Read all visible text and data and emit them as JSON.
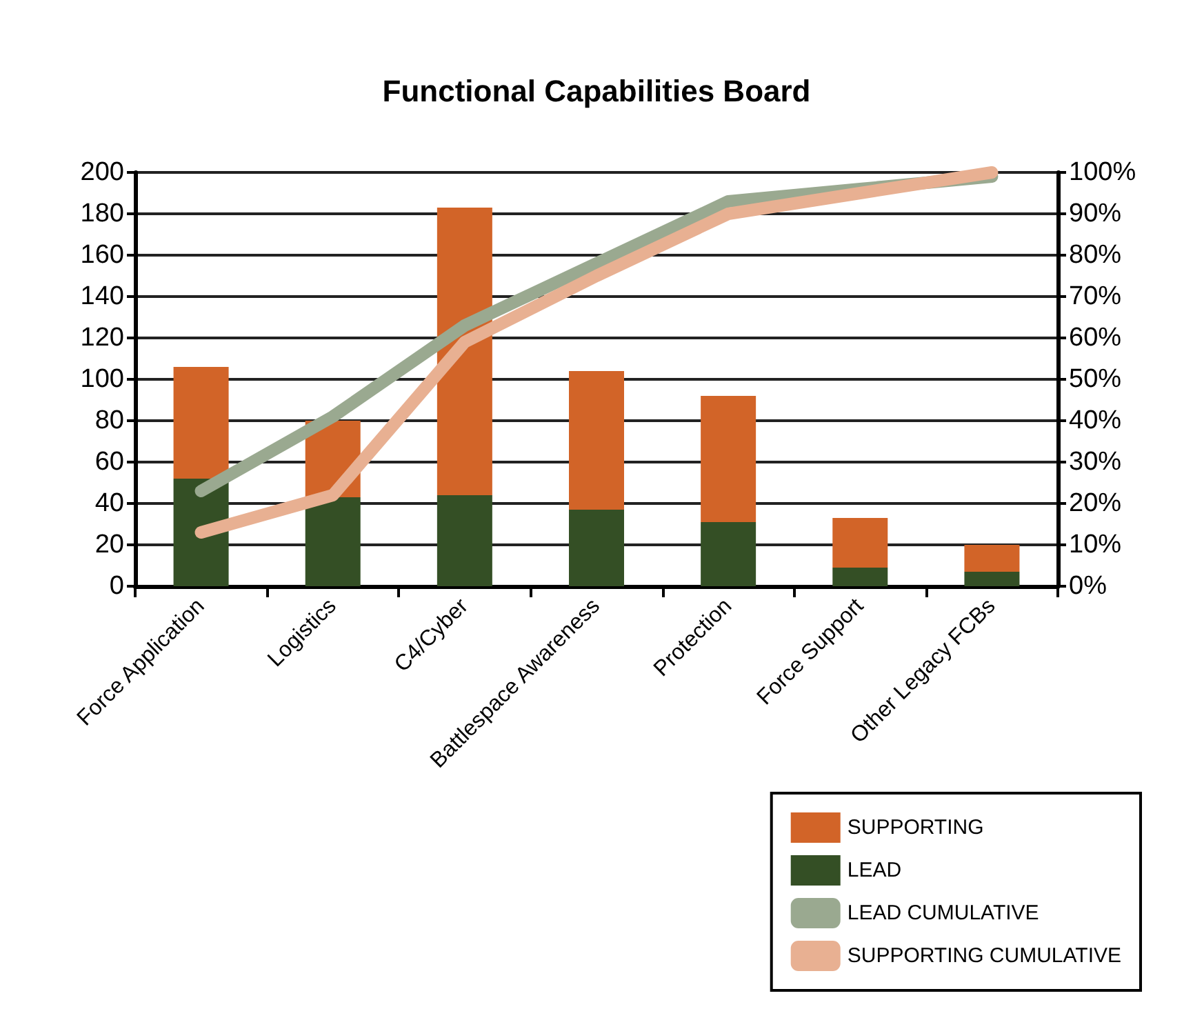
{
  "chart_data": {
    "type": "bar",
    "title": "Functional Capabilities Board",
    "categories": [
      "Force Application",
      "Logistics",
      "C4/Cyber",
      "Battlespace Awareness",
      "Protection",
      "Force Support",
      "Other Legacy FCBs"
    ],
    "stacked": true,
    "series": [
      {
        "name": "LEAD",
        "color": "#344f25",
        "values": [
          52,
          43,
          44,
          37,
          31,
          9,
          7
        ]
      },
      {
        "name": "SUPPORTING",
        "color": "#d26428",
        "values": [
          54,
          37,
          139,
          67,
          61,
          24,
          13
        ]
      },
      {
        "name": "LEAD CUMULATIVE",
        "type": "line",
        "axis": "y2",
        "color": "#9aa990",
        "values": [
          23,
          41,
          63,
          78,
          93,
          96,
          99
        ]
      },
      {
        "name": "SUPPORTING CUMULATIVE",
        "type": "line",
        "axis": "y2",
        "color": "#e8b092",
        "values": [
          13,
          22,
          59,
          75,
          90,
          95,
          100
        ]
      }
    ],
    "ylim": [
      0,
      200
    ],
    "yticks": [
      0,
      20,
      40,
      60,
      80,
      100,
      120,
      140,
      160,
      180,
      200
    ],
    "y2lim": [
      0,
      100
    ],
    "y2ticks": [
      {
        "value": 0,
        "label": "0%"
      },
      {
        "value": 10,
        "label": "10%"
      },
      {
        "value": 20,
        "label": "20%"
      },
      {
        "value": 30,
        "label": "30%"
      },
      {
        "value": 40,
        "label": "40%"
      },
      {
        "value": 50,
        "label": "50%"
      },
      {
        "value": 60,
        "label": "60%"
      },
      {
        "value": 70,
        "label": "70%"
      },
      {
        "value": 80,
        "label": "80%"
      },
      {
        "value": 90,
        "label": "90%"
      },
      {
        "value": 100,
        "label": "100%"
      }
    ],
    "grid": "y",
    "legend": "bottom right",
    "marker": "none",
    "line_style": "solid"
  }
}
